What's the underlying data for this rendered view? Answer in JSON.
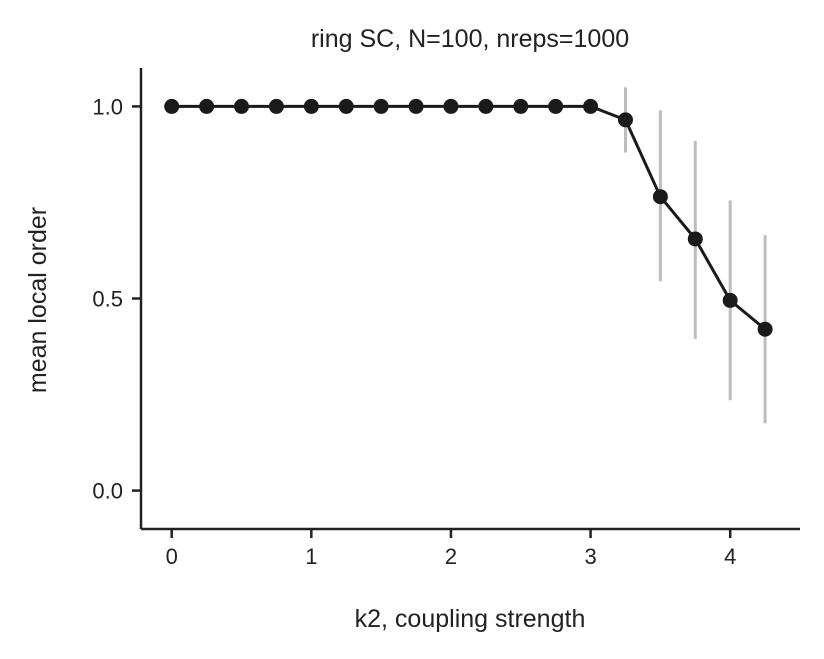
{
  "chart_data": {
    "type": "line",
    "title": "ring SC, N=100, nreps=1000",
    "xlabel": "k2, coupling strength",
    "ylabel": "mean local order",
    "xlim": [
      -0.22,
      4.5
    ],
    "ylim": [
      -0.1,
      1.1
    ],
    "xticks": [
      0,
      1,
      2,
      3,
      4
    ],
    "yticks": [
      0.0,
      0.5,
      1.0
    ],
    "ytick_labels": [
      "0.0",
      "0.5",
      "1.0"
    ],
    "grid": false,
    "colors": {
      "line": "#1a1a1a",
      "errorbar": "#bdbdbd",
      "axis": "#222222"
    },
    "series": [
      {
        "x": [
          0,
          0.25,
          0.5,
          0.75,
          1.0,
          1.25,
          1.5,
          1.75,
          2.0,
          2.25,
          2.5,
          2.75,
          3.0,
          3.25,
          3.5,
          3.75,
          4.0,
          4.25
        ],
        "y": [
          1.0,
          1.0,
          1.0,
          1.0,
          1.0,
          1.0,
          1.0,
          1.0,
          1.0,
          1.0,
          1.0,
          1.0,
          1.0,
          0.965,
          0.765,
          0.655,
          0.495,
          0.42
        ],
        "err_low": [
          null,
          null,
          null,
          null,
          null,
          null,
          null,
          null,
          null,
          null,
          null,
          null,
          null,
          0.88,
          0.545,
          0.395,
          0.235,
          0.175
        ],
        "err_high": [
          null,
          null,
          null,
          null,
          null,
          null,
          null,
          null,
          null,
          null,
          null,
          null,
          null,
          1.05,
          0.99,
          0.91,
          0.755,
          0.665
        ]
      }
    ]
  }
}
